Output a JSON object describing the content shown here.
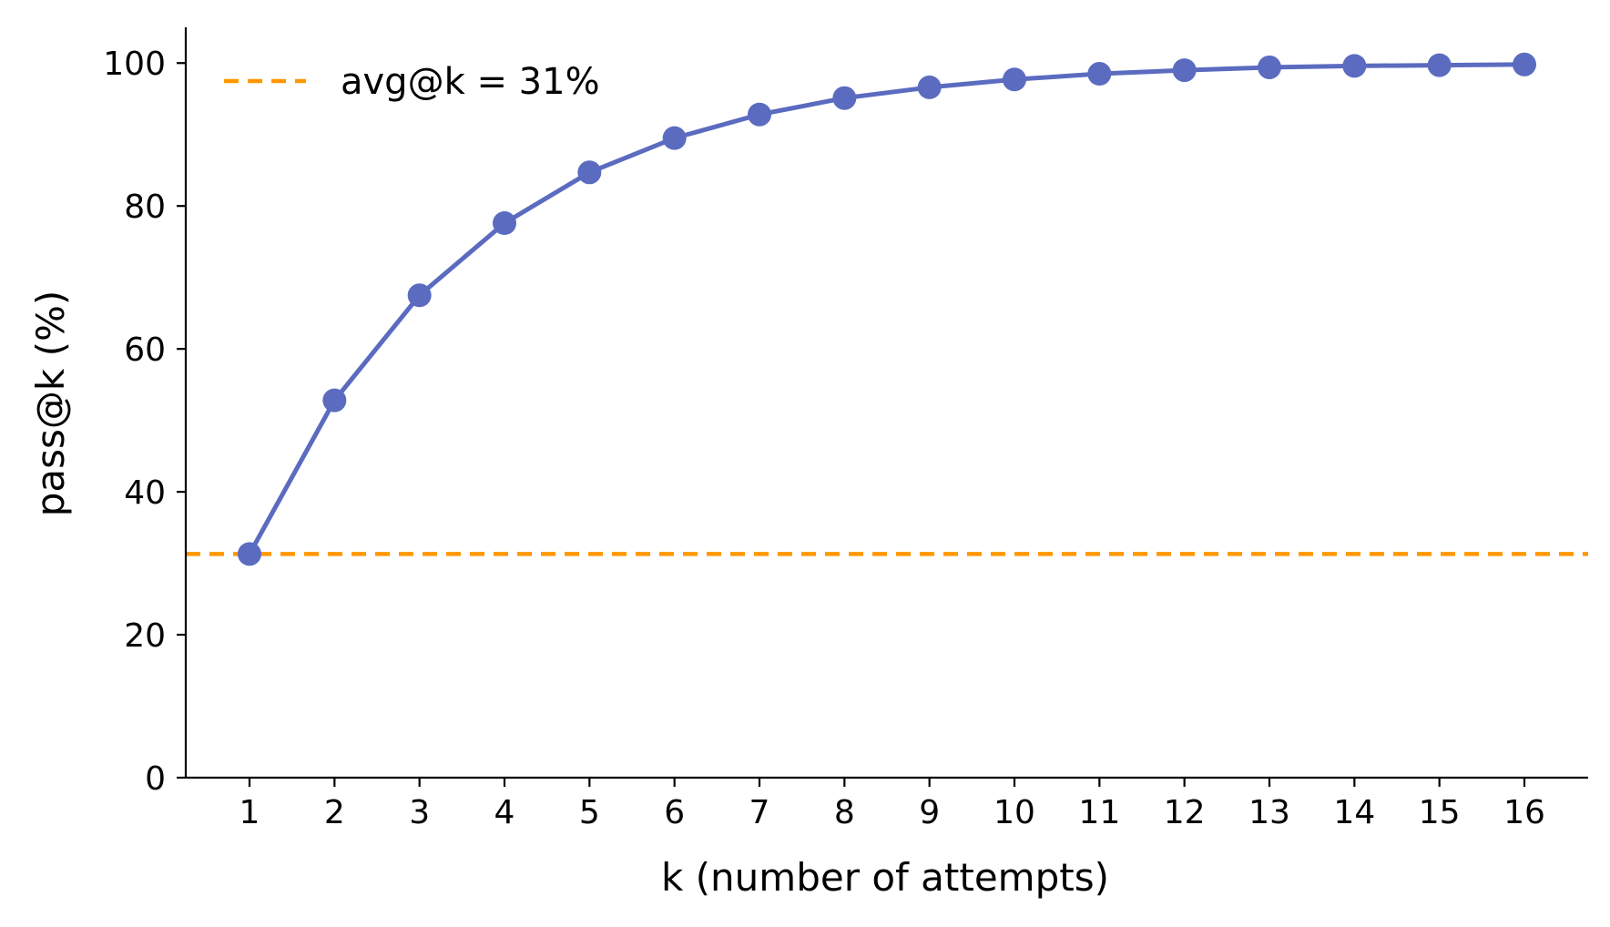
{
  "chart_data": {
    "type": "line",
    "title": "",
    "xlabel": "k (number of attempts)",
    "ylabel": "pass@k (%)",
    "x": [
      1,
      2,
      3,
      4,
      5,
      6,
      7,
      8,
      9,
      10,
      11,
      12,
      13,
      14,
      15,
      16
    ],
    "xlim": [
      0.25,
      16.75
    ],
    "ylim": [
      0,
      105
    ],
    "yticks": [
      0,
      20,
      40,
      60,
      80,
      100
    ],
    "grid": false,
    "series": [
      {
        "name": "pass@k",
        "color": "#5b6bc0",
        "values": [
          31.3,
          52.8,
          67.5,
          77.6,
          84.7,
          89.5,
          92.8,
          95.1,
          96.6,
          97.7,
          98.5,
          99.0,
          99.4,
          99.6,
          99.7,
          99.8
        ]
      }
    ],
    "reference_line": {
      "label": "avg@k = 31%",
      "value": 31.3,
      "color": "#ff9800",
      "style": "dashed"
    },
    "legend": {
      "position": "top-left",
      "entries": [
        "avg@k = 31%"
      ]
    }
  }
}
